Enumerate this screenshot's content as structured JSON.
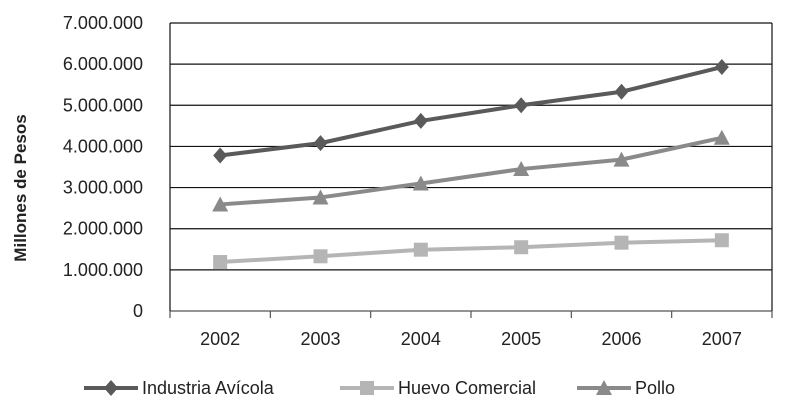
{
  "chart_data": {
    "type": "line",
    "categories": [
      "2002",
      "2003",
      "2004",
      "2005",
      "2006",
      "2007"
    ],
    "series": [
      {
        "name": "Industria Avícola",
        "values": [
          3780000,
          4080000,
          4620000,
          5000000,
          5330000,
          5930000
        ],
        "color": "#5a5a5a",
        "marker": "diamond"
      },
      {
        "name": "Huevo Comercial",
        "values": [
          1190000,
          1330000,
          1490000,
          1550000,
          1660000,
          1720000
        ],
        "color": "#b5b5b5",
        "marker": "square"
      },
      {
        "name": "Pollo",
        "values": [
          2590000,
          2760000,
          3100000,
          3450000,
          3680000,
          4210000
        ],
        "color": "#8a8a8a",
        "marker": "triangle"
      }
    ],
    "ylabel": "Millones de Pesos",
    "xlabel": "",
    "ylim": [
      0,
      7000000
    ],
    "yticks": [
      "0",
      "1.000.000",
      "2.000.000",
      "3.000.000",
      "4.000.000",
      "5.000.000",
      "6.000.000",
      "7.000.000"
    ],
    "grid": true,
    "legend_position": "bottom"
  }
}
